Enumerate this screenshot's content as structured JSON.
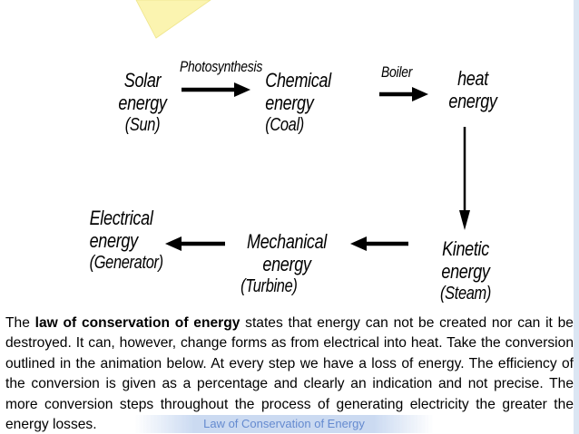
{
  "diagram": {
    "nodes": {
      "solar": {
        "title": "Solar energy",
        "source": "(Sun)"
      },
      "chemical": {
        "title": "Chemical energy",
        "source": "(Coal)"
      },
      "heat": {
        "title": "heat energy",
        "source": ""
      },
      "kinetic": {
        "title": "Kinetic energy",
        "source": "(Steam)"
      },
      "mechanical": {
        "title": "Mechanical energy",
        "source": "(Turbine)"
      },
      "electrical": {
        "title": "Electrical energy",
        "source": "(Generator)"
      }
    },
    "processes": {
      "photosynthesis": "Photosynthesis",
      "boiler": "Boiler"
    }
  },
  "text": {
    "part1": "The ",
    "bold": "law of conservation of energy",
    "part2": " states that energy can not be created nor can it be destroyed. It can, however, change forms as from electrical into heat. Take the conversion outlined in the animation below. At every step we have a loss of energy. The efficiency of the conversion is given as a percentage and clearly an indication and not precise. The more conversion steps throughout the process of generating electricity the greater the energy losses."
  },
  "footer": {
    "caption": "Law of Conservation of Energy"
  },
  "colors": {
    "decor_yellow": "#fbf4b0",
    "decor_bar": "#dbe6f3",
    "footer_text": "#4a76c7"
  }
}
